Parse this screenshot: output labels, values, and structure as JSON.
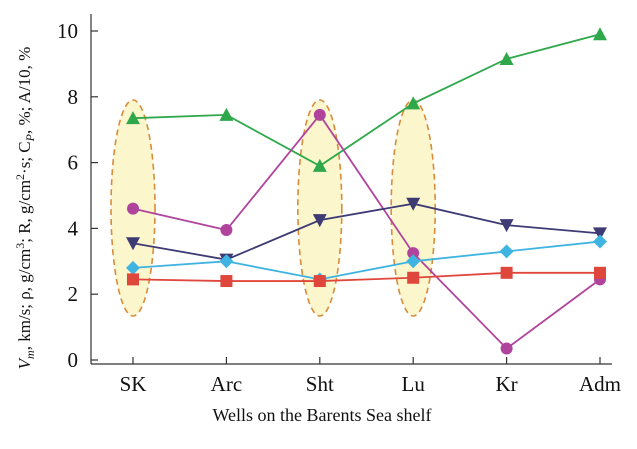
{
  "chart_data": {
    "type": "line",
    "categories": [
      "SK",
      "Arc",
      "Sht",
      "Lu",
      "Kr",
      "Adm"
    ],
    "xlabel": "Wells on the Barents Sea shelf",
    "ylabel_parts": [
      "V",
      "m",
      ", km/s; ρ, g/cm",
      "3",
      "; R, g/cm",
      "2",
      "·s; C",
      "P",
      ", %; A/10, %"
    ],
    "ylim": [
      0,
      10.2
    ],
    "yticks": [
      0,
      2,
      4,
      6,
      8,
      10
    ],
    "highlighted_categories": [
      "SK",
      "Sht",
      "Lu"
    ],
    "colors": {
      "highlight_fill": "#fbf6cc",
      "highlight_stroke": "#d98c3a",
      "axis": "#333333"
    },
    "series": [
      {
        "name": "green-triangle",
        "marker": "triangle-up",
        "color": "#2ea84a",
        "values": [
          7.35,
          7.45,
          5.9,
          7.8,
          9.15,
          9.9
        ]
      },
      {
        "name": "magenta-circle",
        "marker": "circle",
        "color": "#b0449c",
        "values": [
          4.6,
          3.95,
          7.45,
          3.25,
          0.35,
          2.45
        ]
      },
      {
        "name": "navy-triangle-down",
        "marker": "triangle-down",
        "color": "#3d3a74",
        "values": [
          3.55,
          3.05,
          4.25,
          4.75,
          4.1,
          3.85
        ]
      },
      {
        "name": "cyan-diamond",
        "marker": "diamond",
        "color": "#40b4e0",
        "values": [
          2.8,
          3.0,
          2.45,
          3.0,
          3.3,
          3.6
        ]
      },
      {
        "name": "red-square",
        "marker": "square",
        "color": "#e0473c",
        "values": [
          2.45,
          2.4,
          2.4,
          2.5,
          2.65,
          2.65
        ]
      }
    ]
  }
}
